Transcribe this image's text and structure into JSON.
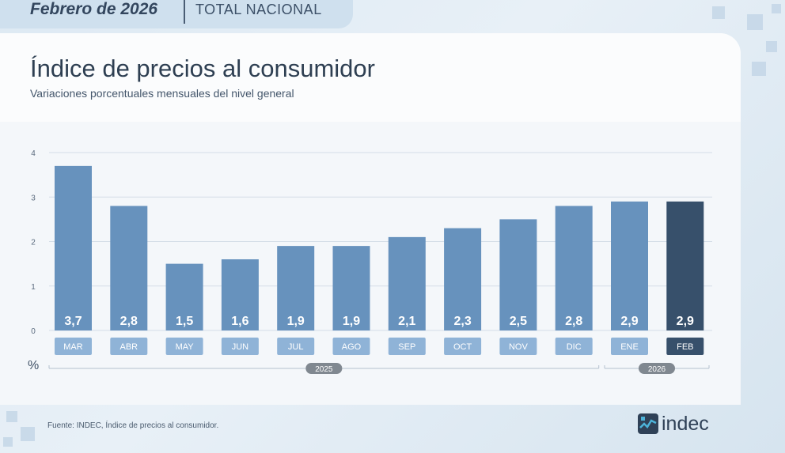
{
  "header": {
    "period": "Febrero de 2026",
    "scope": "TOTAL NACIONAL"
  },
  "colors": {
    "bar": "#6792bd",
    "bar_highlight": "#37506b",
    "label_bg": "#8fb3d7",
    "label_bg_highlight": "#37506b",
    "year_badge": "#808890"
  },
  "chart_data": {
    "type": "bar",
    "title": "Índice de precios al consumidor",
    "subtitle": "Variaciones porcentuales mensuales del nivel general",
    "ylabel": "%",
    "ylim": [
      0,
      4
    ],
    "yticks": [
      "0",
      "1",
      "2",
      "3",
      "4"
    ],
    "grid": true,
    "categories": [
      "MAR",
      "ABR",
      "MAY",
      "JUN",
      "JUL",
      "AGO",
      "SEP",
      "OCT",
      "NOV",
      "DIC",
      "ENE",
      "FEB"
    ],
    "values": [
      3.7,
      2.8,
      1.5,
      1.6,
      1.9,
      1.9,
      2.1,
      2.3,
      2.5,
      2.8,
      2.9,
      2.9
    ],
    "value_labels": [
      "3,7",
      "2,8",
      "1,5",
      "1,6",
      "1,9",
      "1,9",
      "2,1",
      "2,3",
      "2,5",
      "2,8",
      "2,9",
      "2,9"
    ],
    "highlight_index": 11,
    "year_groups": [
      {
        "label": "2025",
        "start": 0,
        "end": 9
      },
      {
        "label": "2026",
        "start": 10,
        "end": 11
      }
    ]
  },
  "footer": {
    "source": "Fuente: INDEC, Índice de precios al consumidor.",
    "logo_text": "indec"
  }
}
